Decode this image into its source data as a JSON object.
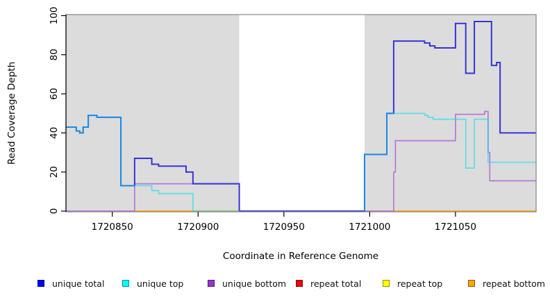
{
  "chart_data": {
    "type": "line",
    "subtype": "step-coverage-plot",
    "title": "",
    "xlabel": "Coordinate in Reference Genome",
    "ylabel": "Read Coverage Depth",
    "xlim": [
      1720823,
      1721097
    ],
    "ylim": [
      0,
      100
    ],
    "x_ticks": [
      1720850,
      1720900,
      1720950,
      1721000,
      1721050
    ],
    "y_ticks": [
      0,
      20,
      40,
      60,
      80,
      100
    ],
    "grid": false,
    "legend_position": "bottom",
    "plot_background": "#ffffff",
    "shaded_regions": [
      {
        "name": "left-gray-region",
        "from": 1720823,
        "to": 1720924,
        "color": "#dcdcdc"
      },
      {
        "name": "white-gap-region",
        "from": 1720924,
        "to": 1720997,
        "color": "#ffffff"
      },
      {
        "name": "right-gray-region",
        "from": 1720997,
        "to": 1721097,
        "color": "#dcdcdc"
      }
    ],
    "series": [
      {
        "name": "repeat total",
        "plot_color": "#e5688e",
        "opacity": 1,
        "width": 1.6,
        "segments": [
          [
            [
              1720823,
              0
            ],
            [
              1720863,
              0
            ]
          ]
        ]
      },
      {
        "name": "repeat top",
        "plot_color": "#ffff00",
        "opacity": 1,
        "width": 1.6,
        "segments": [
          [
            [
              1720863,
              0
            ],
            [
              1721097,
              0
            ]
          ]
        ]
      },
      {
        "name": "repeat bottom",
        "plot_color": "#ff9f0e",
        "opacity": 1,
        "width": 1.8,
        "segments": [
          [
            [
              1720863,
              0
            ],
            [
              1721097,
              0
            ]
          ]
        ]
      },
      {
        "name": "unique bottom",
        "plot_color": "#b478d8",
        "opacity": 1,
        "width": 1.7,
        "segments": [
          [
            [
              1720823,
              0
            ],
            [
              1720863,
              14
            ],
            [
              1720924,
              0
            ],
            [
              1721014,
              20
            ],
            [
              1721015,
              36
            ],
            [
              1721050,
              49.5
            ],
            [
              1721067,
              51
            ],
            [
              1721069,
              30
            ],
            [
              1721070,
              15.5
            ],
            [
              1721097,
              15.5
            ]
          ]
        ]
      },
      {
        "name": "unique total",
        "plot_color": "#3434d6",
        "opacity": 1,
        "width": 2,
        "segments": [
          [
            [
              1720823,
              43
            ],
            [
              1720829,
              41
            ],
            [
              1720831,
              40
            ],
            [
              1720833,
              43
            ],
            [
              1720836,
              49
            ],
            [
              1720841,
              48
            ],
            [
              1720855,
              13
            ],
            [
              1720863,
              27
            ],
            [
              1720873,
              24
            ],
            [
              1720877,
              23
            ],
            [
              1720893,
              20
            ],
            [
              1720897,
              14
            ],
            [
              1720924,
              0
            ],
            [
              1720997,
              29
            ],
            [
              1721010,
              50
            ],
            [
              1721014,
              87
            ],
            [
              1721032,
              86
            ],
            [
              1721035,
              84.5
            ],
            [
              1721038,
              83.5
            ],
            [
              1721050,
              96
            ],
            [
              1721056,
              70.5
            ],
            [
              1721061,
              97
            ],
            [
              1721071,
              74.5
            ],
            [
              1721074,
              76
            ],
            [
              1721076,
              40
            ],
            [
              1721097,
              40
            ]
          ]
        ]
      },
      {
        "name": "unique top",
        "plot_color": "#00dff0",
        "opacity": 0.55,
        "width": 1.8,
        "segments": [
          [
            [
              1720823,
              43
            ],
            [
              1720829,
              41
            ],
            [
              1720831,
              40
            ],
            [
              1720833,
              43
            ],
            [
              1720836,
              49
            ],
            [
              1720841,
              48
            ],
            [
              1720855,
              13
            ],
            [
              1720873,
              10.5
            ],
            [
              1720877,
              9
            ],
            [
              1720897,
              0
            ],
            [
              1720924,
              0
            ]
          ],
          [
            [
              1720997,
              0
            ],
            [
              1720997,
              29
            ],
            [
              1721010,
              50
            ],
            [
              1721032,
              49
            ],
            [
              1721034,
              48
            ],
            [
              1721037,
              47
            ],
            [
              1721056,
              22
            ],
            [
              1721061,
              47
            ],
            [
              1721069,
              25
            ],
            [
              1721097,
              25
            ]
          ]
        ]
      }
    ],
    "legend": [
      {
        "label": "unique total",
        "swatch": "#0000ee"
      },
      {
        "label": "unique top",
        "swatch": "#00ffff"
      },
      {
        "label": "unique bottom",
        "swatch": "#9932cc"
      },
      {
        "label": "repeat total",
        "swatch": "#ee0000"
      },
      {
        "label": "repeat top",
        "swatch": "#ffff00"
      },
      {
        "label": "repeat bottom",
        "swatch": "#ffa500"
      }
    ]
  }
}
